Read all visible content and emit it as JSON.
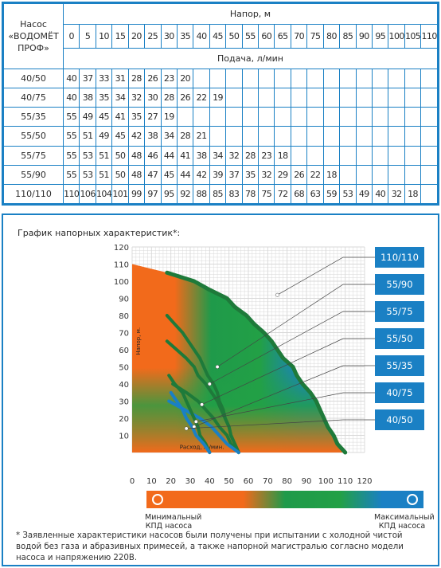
{
  "table": {
    "corner_label": [
      "Насос",
      "«ВОДОМЁТ",
      "ПРОФ»"
    ],
    "head_label": "Напор, м",
    "flow_label": "Подача, л/мин",
    "heads": [
      "0",
      "5",
      "10",
      "15",
      "20",
      "25",
      "30",
      "35",
      "40",
      "45",
      "50",
      "55",
      "60",
      "65",
      "70",
      "75",
      "80",
      "85",
      "90",
      "95",
      "100",
      "105",
      "110"
    ],
    "rows": [
      {
        "model": "40/50",
        "values": [
          "40",
          "37",
          "33",
          "31",
          "28",
          "26",
          "23",
          "20"
        ]
      },
      {
        "model": "40/75",
        "values": [
          "40",
          "38",
          "35",
          "34",
          "32",
          "30",
          "28",
          "26",
          "22",
          "19"
        ]
      },
      {
        "model": "55/35",
        "values": [
          "55",
          "49",
          "45",
          "41",
          "35",
          "27",
          "19"
        ]
      },
      {
        "model": "55/50",
        "values": [
          "55",
          "51",
          "49",
          "45",
          "42",
          "38",
          "34",
          "28",
          "21"
        ]
      },
      {
        "model": "55/75",
        "values": [
          "55",
          "53",
          "51",
          "50",
          "48",
          "46",
          "44",
          "41",
          "38",
          "34",
          "32",
          "28",
          "23",
          "18"
        ]
      },
      {
        "model": "55/90",
        "values": [
          "55",
          "53",
          "51",
          "50",
          "48",
          "47",
          "45",
          "44",
          "42",
          "39",
          "37",
          "35",
          "32",
          "29",
          "26",
          "22",
          "18"
        ]
      },
      {
        "model": "110/110",
        "values": [
          "110",
          "106",
          "104",
          "101",
          "99",
          "97",
          "95",
          "92",
          "88",
          "85",
          "83",
          "78",
          "75",
          "72",
          "68",
          "63",
          "59",
          "53",
          "49",
          "40",
          "32",
          "18"
        ]
      }
    ]
  },
  "chart": {
    "title": "График напорных характеристик*:",
    "ylabel": "Напор, м.",
    "xlabel": "Расход, л./мин.",
    "min_label": [
      "Минимальный",
      "КПД насоса"
    ],
    "max_label": [
      "Максимальный",
      "КПД насоса"
    ],
    "footnote": "*  Заявленные характеристики насосов были получены при испытании с холодной чистой водой без газа и абразивных примесей, а также напорной магистралью согласно модели насоса и напряжению  220В.",
    "colors": {
      "blue": "#1a80c4",
      "green": "#1e7a3a",
      "orange": "#f26a1b"
    }
  },
  "chart_data": {
    "type": "line",
    "xlabel": "Расход, л./мин.",
    "ylabel": "Напор, м.",
    "xlim": [
      0,
      120
    ],
    "ylim": [
      0,
      120
    ],
    "x_ticks": [
      0,
      10,
      20,
      30,
      40,
      50,
      60,
      70,
      80,
      90,
      100,
      110,
      120
    ],
    "y_ticks": [
      10,
      20,
      30,
      40,
      50,
      60,
      70,
      80,
      90,
      100,
      110,
      120
    ],
    "grid": true,
    "series": [
      {
        "name": "110/110",
        "color": "green",
        "y": [
          0,
          5,
          10,
          15,
          20,
          25,
          30,
          35,
          40,
          45,
          50,
          55,
          60,
          65,
          70,
          75,
          80,
          85,
          90,
          95,
          100,
          105
        ],
        "x": [
          110,
          106,
          104,
          101,
          99,
          97,
          95,
          92,
          88,
          85,
          83,
          78,
          75,
          72,
          68,
          63,
          59,
          53,
          49,
          40,
          32,
          18
        ]
      },
      {
        "name": "55/90",
        "color": "green",
        "y": [
          0,
          5,
          10,
          15,
          20,
          25,
          30,
          35,
          40,
          45,
          50,
          55,
          60,
          65,
          70,
          75,
          80
        ],
        "x": [
          55,
          53,
          51,
          50,
          48,
          47,
          45,
          44,
          42,
          39,
          37,
          35,
          32,
          29,
          26,
          22,
          18
        ]
      },
      {
        "name": "55/75",
        "color": "green",
        "y": [
          0,
          5,
          10,
          15,
          20,
          25,
          30,
          35,
          40,
          45,
          50,
          55,
          60,
          65
        ],
        "x": [
          55,
          53,
          51,
          50,
          48,
          46,
          44,
          41,
          38,
          34,
          32,
          28,
          23,
          18
        ]
      },
      {
        "name": "55/50",
        "color": "green",
        "y": [
          0,
          5,
          10,
          15,
          20,
          25,
          30,
          35,
          40
        ],
        "x": [
          55,
          51,
          49,
          45,
          42,
          38,
          34,
          28,
          21
        ]
      },
      {
        "name": "55/35",
        "color": "blue",
        "y": [
          0,
          5,
          10,
          15,
          20,
          25,
          30
        ],
        "x": [
          55,
          49,
          45,
          41,
          35,
          27,
          19
        ]
      },
      {
        "name": "40/75",
        "color": "green",
        "y": [
          0,
          5,
          10,
          15,
          20,
          25,
          30,
          35,
          40,
          45
        ],
        "x": [
          40,
          38,
          35,
          34,
          32,
          30,
          28,
          26,
          22,
          19
        ]
      },
      {
        "name": "40/50",
        "color": "blue",
        "y": [
          0,
          5,
          10,
          15,
          20,
          25,
          30,
          35
        ],
        "x": [
          40,
          37,
          33,
          31,
          28,
          26,
          23,
          20
        ]
      }
    ]
  }
}
